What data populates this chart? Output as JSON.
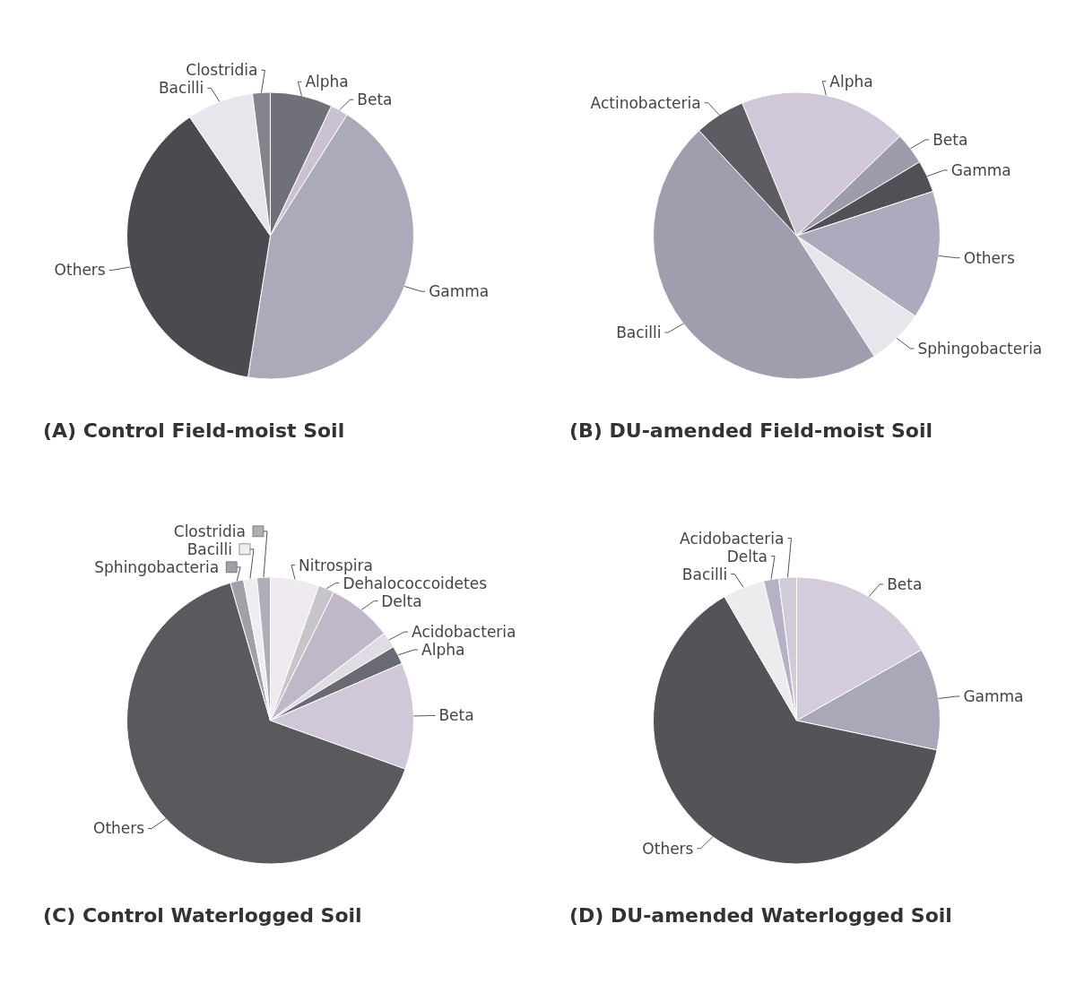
{
  "chart_data": [
    {
      "type": "pie",
      "title": "(A) Control Field-moist Soil",
      "categories": [
        "Alpha",
        "Beta",
        "Gamma",
        "Others",
        "Bacilli",
        "Clostridia"
      ],
      "values": [
        7,
        2,
        43.5,
        38,
        7.5,
        2
      ],
      "colors": [
        "#707078",
        "#cac2d2",
        "#aaaabb",
        "#4a4a50",
        "#e8e6ec",
        "#84848c"
      ]
    },
    {
      "type": "pie",
      "title": "(B) DU-amended Field-moist Soil",
      "categories": [
        "Alpha",
        "Beta",
        "Gamma",
        "Others",
        "Sphingobacteria",
        "Bacilli",
        "Actinobacteria"
      ],
      "values": [
        19,
        3.6,
        3.6,
        14.5,
        6.4,
        47.2,
        5.7
      ],
      "colors": [
        "#d0c8d8",
        "#9c9caa",
        "#505056",
        "#aeaabe",
        "#e8e6ec",
        "#9e9eae",
        "#5c5c62"
      ]
    },
    {
      "type": "pie",
      "title": "(C) Control Waterlogged Soil",
      "categories": [
        "Nitrospira",
        "Dehalococcoidetes",
        "Delta",
        "Acidobacteria",
        "Alpha",
        "Beta",
        "Others",
        "Sphingobacteria",
        "Bacilli",
        "Clostridia"
      ],
      "values": [
        5.5,
        1.8,
        7.3,
        1.8,
        2.1,
        12,
        65,
        1.5,
        1.5,
        1.5
      ],
      "legend": "top left",
      "colors": [
        "#eeeaf0",
        "#c8c4cc",
        "#c0b8c8",
        "#e0dce4",
        "#6a6a74",
        "#d0c8d8",
        "#5a5a5e",
        "#a0a0a8",
        "#eeeef0",
        "#b0acb8"
      ]
    },
    {
      "type": "pie",
      "title": "(D) DU-amended Waterlogged Soil",
      "categories": [
        "Beta",
        "Gamma",
        "Others",
        "Bacilli",
        "Delta",
        "Acidobacteria"
      ],
      "values": [
        16.8,
        11.5,
        63.3,
        4.7,
        1.7,
        2
      ],
      "colors": [
        "#d4ccdc",
        "#a8a8b8",
        "#545458",
        "#ececee",
        "#b8b0c4",
        "#d0ccd8"
      ]
    }
  ]
}
